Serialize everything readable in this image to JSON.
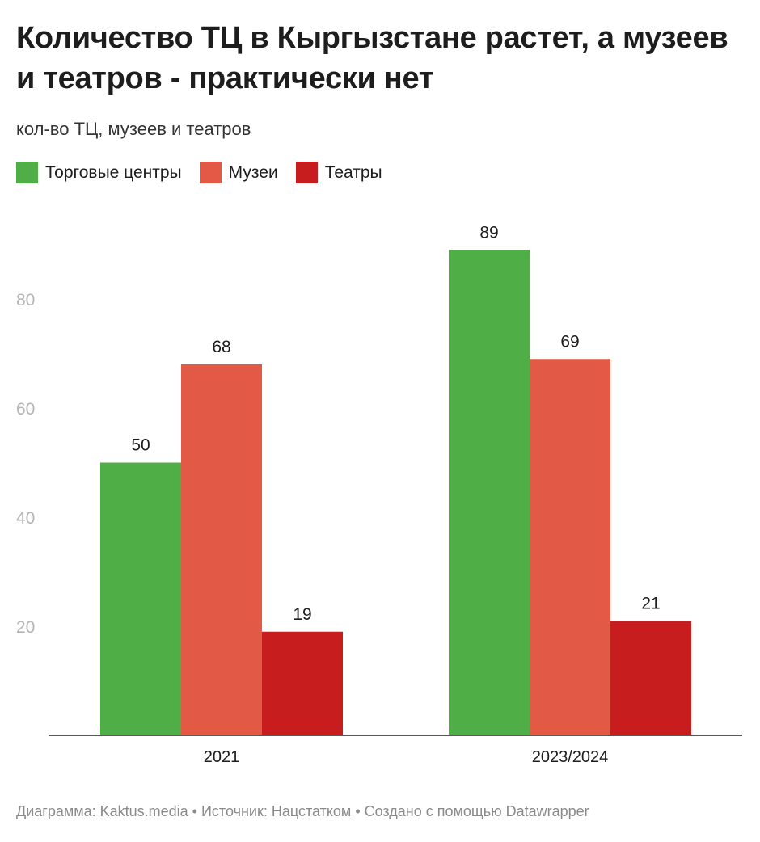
{
  "title": "Количество ТЦ в Кыргызстане растет, а музеев и театров - практически нет",
  "subtitle": "кол-во ТЦ, музеев и театров",
  "footer": {
    "chart_by": "Диаграмма: Kaktus.media",
    "sep": " • ",
    "source": "Источник: Нацстатком",
    "tool": "Создано с помощью Datawrapper"
  },
  "chart_data": {
    "type": "bar",
    "title": "Количество ТЦ в Кыргызстане растет, а музеев и театров - практически нет",
    "categories": [
      "2021",
      "2023/2024"
    ],
    "series": [
      {
        "name": "Торговые центры",
        "color": "#50ae47",
        "values": [
          50,
          89
        ]
      },
      {
        "name": "Музеи",
        "color": "#e25a46",
        "values": [
          68,
          69
        ]
      },
      {
        "name": "Театры",
        "color": "#c81d1e",
        "values": [
          19,
          21
        ]
      }
    ],
    "yticks": [
      20,
      40,
      60,
      80
    ],
    "ylim": [
      0,
      90
    ],
    "legend": "top-left",
    "grid": false
  }
}
